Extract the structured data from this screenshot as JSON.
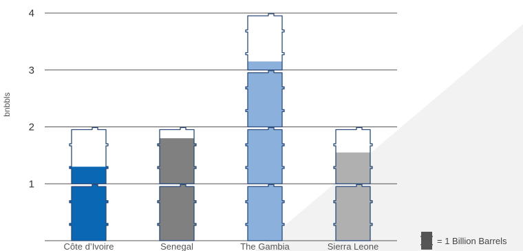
{
  "chart_data": {
    "type": "bar",
    "ylabel": "bnbbls",
    "ylim": [
      0,
      4
    ],
    "yticks": [
      1,
      2,
      3,
      4
    ],
    "grid": true,
    "categories": [
      "Côte d’Ivoire",
      "Senegal",
      "The Gambia",
      "Sierra Leone"
    ],
    "values": [
      1.3,
      1.8,
      3.15,
      1.55
    ],
    "colors": [
      "#0a67b4",
      "#808080",
      "#8cb0dc",
      "#b0b0b0"
    ],
    "legend": {
      "label": "= 1 Billion Barrels",
      "icon": "oil-barrel-icon",
      "color": "#555555",
      "placement": "bottom-right"
    }
  }
}
